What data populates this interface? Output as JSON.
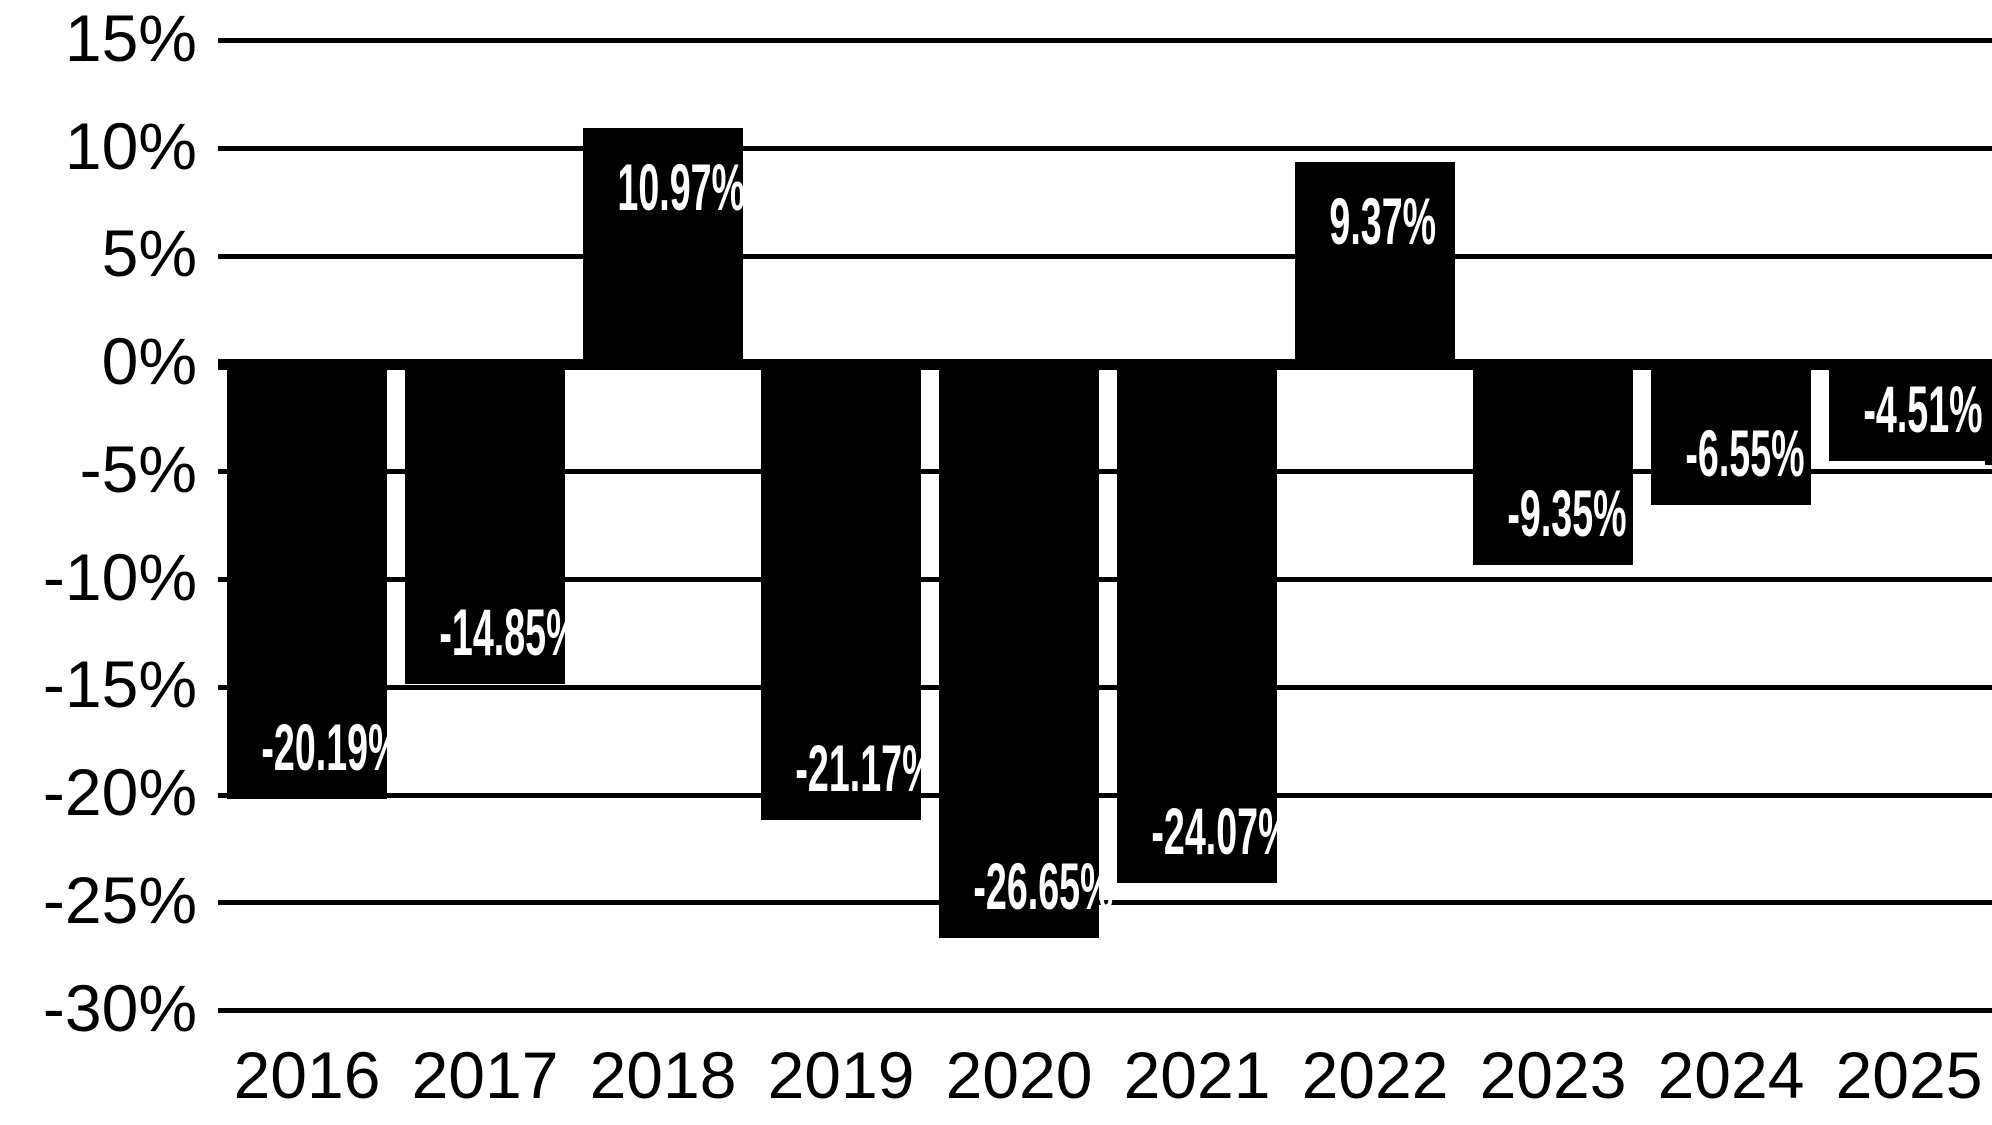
{
  "chart_data": {
    "type": "bar",
    "title": "",
    "xlabel": "",
    "ylabel": "",
    "categories": [
      "2016",
      "2017",
      "2018",
      "2019",
      "2020",
      "2021",
      "2022",
      "2023",
      "2024",
      "2025"
    ],
    "values": [
      -20.19,
      -14.85,
      10.97,
      -21.17,
      -26.65,
      -24.07,
      9.37,
      -9.35,
      -6.55,
      -4.51
    ],
    "bar_labels": [
      "-20.19%",
      "-14.85%",
      "10.97%",
      "-21.17%",
      "-26.65%",
      "-24.07%",
      "9.37%",
      "-9.35%",
      "-6.55%",
      "-4.51%"
    ],
    "y_tick_labels": [
      "15%",
      "10%",
      "5%",
      "0%",
      "-5%",
      "-10%",
      "-15%",
      "-20%",
      "-25%",
      "-30%"
    ],
    "y_tick_values": [
      15,
      10,
      5,
      0,
      -5,
      -10,
      -15,
      -20,
      -25,
      -30
    ],
    "ylim": [
      -30,
      15
    ],
    "grid": true,
    "legend_position": "none",
    "partial_bar_right_edge": {
      "value": -4.7,
      "label": "",
      "clipped": true
    },
    "colors": {
      "bar": "#000000",
      "bar_label_text": "#ffffff",
      "axis_text": "#000000",
      "gridline": "#000000",
      "background": "#ffffff"
    }
  }
}
